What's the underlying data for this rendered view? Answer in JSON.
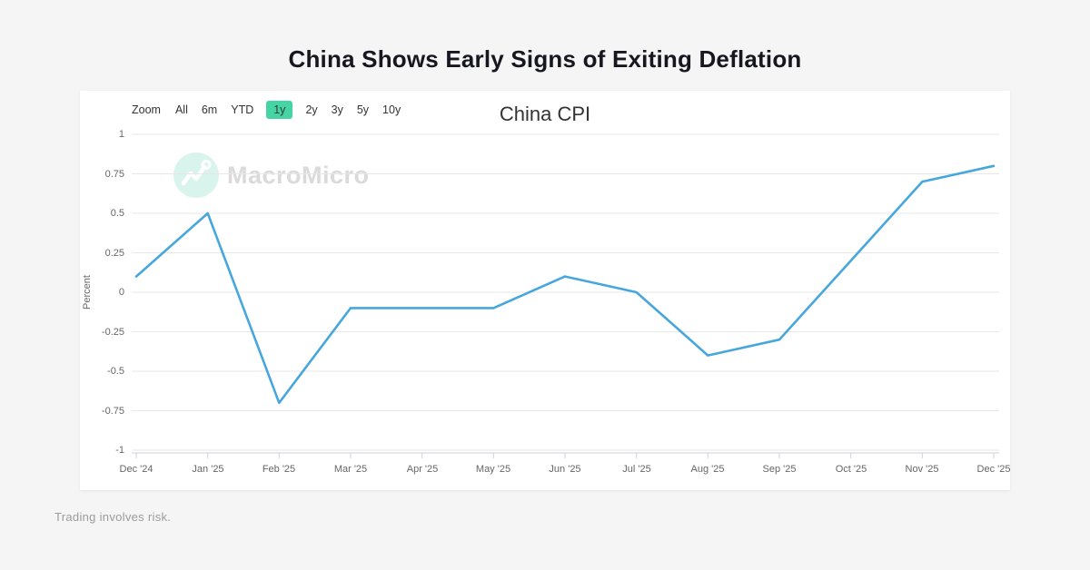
{
  "page": {
    "title": "China Shows Early Signs of Exiting Deflation",
    "footer": "Trading involves risk."
  },
  "watermark": {
    "text": "MacroMicro"
  },
  "toolbar": {
    "zoom_label": "Zoom",
    "items": [
      {
        "label": "All",
        "active": false
      },
      {
        "label": "6m",
        "active": false
      },
      {
        "label": "YTD",
        "active": false
      },
      {
        "label": "1y",
        "active": true
      },
      {
        "label": "2y",
        "active": false
      },
      {
        "label": "3y",
        "active": false
      },
      {
        "label": "5y",
        "active": false
      },
      {
        "label": "10y",
        "active": false
      }
    ]
  },
  "chart_data": {
    "type": "line",
    "title": "China CPI",
    "xlabel": "",
    "ylabel": "Percent",
    "categories": [
      "Dec '24",
      "Jan '25",
      "Feb '25",
      "Mar '25",
      "Apr '25",
      "May '25",
      "Jun '25",
      "Jul '25",
      "Aug '25",
      "Sep '25",
      "Oct '25",
      "Nov '25",
      "Dec '25"
    ],
    "values": [
      0.1,
      0.5,
      -0.7,
      -0.1,
      -0.1,
      -0.1,
      0.1,
      0.0,
      -0.4,
      -0.3,
      0.2,
      0.7,
      0.8
    ],
    "ylim": [
      -1,
      1
    ],
    "ytick_step": 0.25,
    "yticks": [
      "1",
      "0.75",
      "0.5",
      "0.25",
      "0",
      "-0.25",
      "-0.5",
      "-0.75",
      "-1"
    ],
    "grid": true,
    "legend": "none",
    "line_color": "#47a7dd",
    "grid_color": "#e7e7e7",
    "axis_color": "#ccd1da",
    "accent_color": "#45d4a4"
  }
}
